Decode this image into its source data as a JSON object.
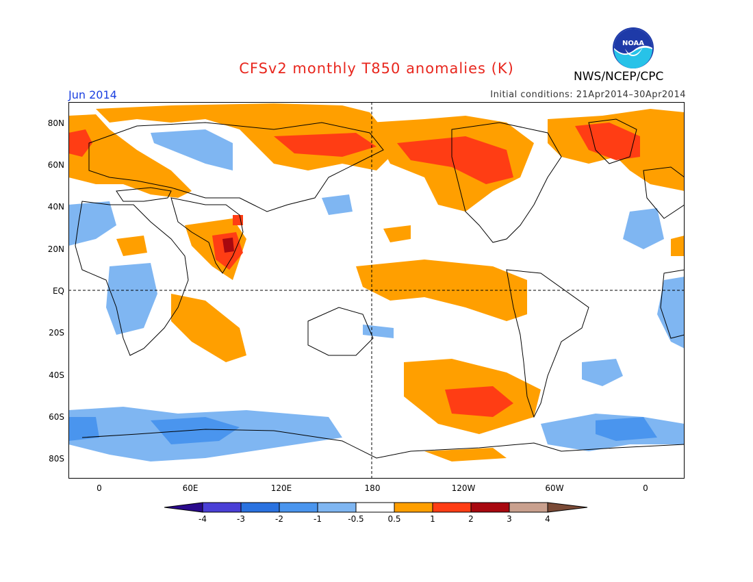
{
  "header": {
    "title": "CFSv2 monthly T850 anomalies (K)",
    "agency": "NWS/NCEP/CPC",
    "logo_text": "NOAA",
    "month": "Jun 2014",
    "initial_conditions": "Initial conditions: 21Apr2014–30Apr2014"
  },
  "map": {
    "projection": "cylindrical",
    "lon_range": [
      -20,
      380
    ],
    "lat_range": [
      -90,
      90
    ],
    "lat_labels": [
      "80N",
      "60N",
      "40N",
      "20N",
      "EQ",
      "20S",
      "40S",
      "60S",
      "80S"
    ],
    "lon_labels": [
      "0",
      "60E",
      "120E",
      "180",
      "120W",
      "60W",
      "0"
    ],
    "reference_lines": [
      "EQ",
      "180"
    ]
  },
  "colorbar": {
    "labels": [
      "-4",
      "-3",
      "-2",
      "-1",
      "-0.5",
      "0.5",
      "1",
      "2",
      "3",
      "4"
    ],
    "colors": [
      "#2a0a8c",
      "#4a3fd6",
      "#2a72e0",
      "#4a95ee",
      "#7fb6f2",
      "#ffffff",
      "#ff9f00",
      "#ff3d14",
      "#a8080f",
      "#c9a08e",
      "#7a4a36"
    ]
  },
  "colors": {
    "title": "#e8261d",
    "month": "#1a3fe0"
  }
}
